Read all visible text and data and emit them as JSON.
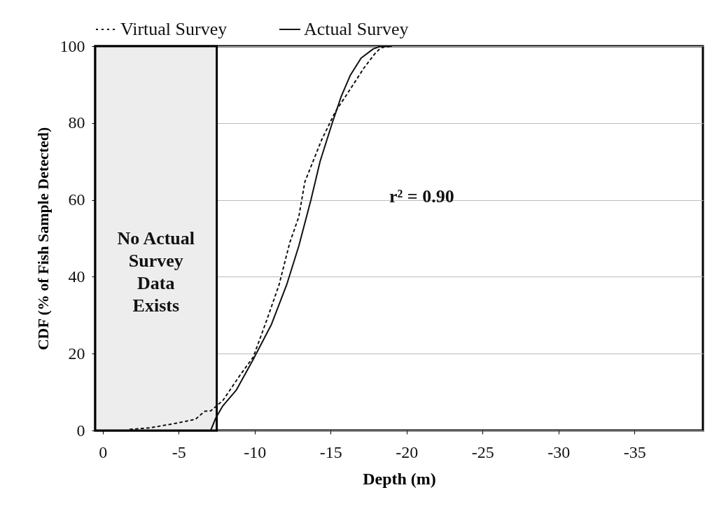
{
  "chart_data": {
    "type": "line",
    "xlabel": "Depth (m)",
    "ylabel": "CDF (% of Fish Sample Detected)",
    "xlim": [
      0.5,
      -39.5
    ],
    "xticks": [
      0,
      -5,
      -10,
      -15,
      -20,
      -25,
      -30,
      -35
    ],
    "ylim": [
      0,
      100
    ],
    "yticks": [
      0,
      20,
      40,
      60,
      80,
      100
    ],
    "grid": "y",
    "legend": "top",
    "series": [
      {
        "name": "Virtual Survey",
        "color": "#111111",
        "line_style": "dotted",
        "x": [
          -1.8,
          -3.1,
          -4.7,
          -6.1,
          -6.7,
          -7.1,
          -7.9,
          -9.0,
          -9.9,
          -10.8,
          -11.6,
          -12.3,
          -12.9,
          -13.3,
          -14.4,
          -15.3,
          -16.3,
          -17.2,
          -17.9,
          -18.3,
          -19
        ],
        "values": [
          0.3,
          0.7,
          1.8,
          2.9,
          5,
          5.1,
          7.8,
          14.2,
          19.1,
          28.8,
          37.9,
          48.8,
          55.6,
          64.7,
          75.6,
          82.9,
          88.9,
          94.4,
          98,
          99.6,
          100
        ]
      },
      {
        "name": "Actual Survey",
        "color": "#111111",
        "line_style": "solid",
        "x": [
          -7.1,
          -7.44,
          -7.9,
          -8.8,
          -9.9,
          -11.1,
          -12.1,
          -12.9,
          -13.7,
          -14.3,
          -15.1,
          -15.7,
          -16.3,
          -17.0,
          -17.8,
          -18.3,
          -19
        ],
        "values": [
          0,
          3.3,
          6.4,
          10.6,
          18.5,
          27.6,
          37.9,
          48,
          60,
          70,
          80,
          87,
          92.5,
          96.9,
          99.3,
          100,
          100
        ]
      }
    ],
    "bands": [
      {
        "axis": "x",
        "from": 0.5,
        "to": -7.5,
        "label": "No Actual\nSurvey\nData\nExists",
        "color": "#ededed"
      }
    ],
    "annotations": [
      "r² = 0.90"
    ]
  }
}
